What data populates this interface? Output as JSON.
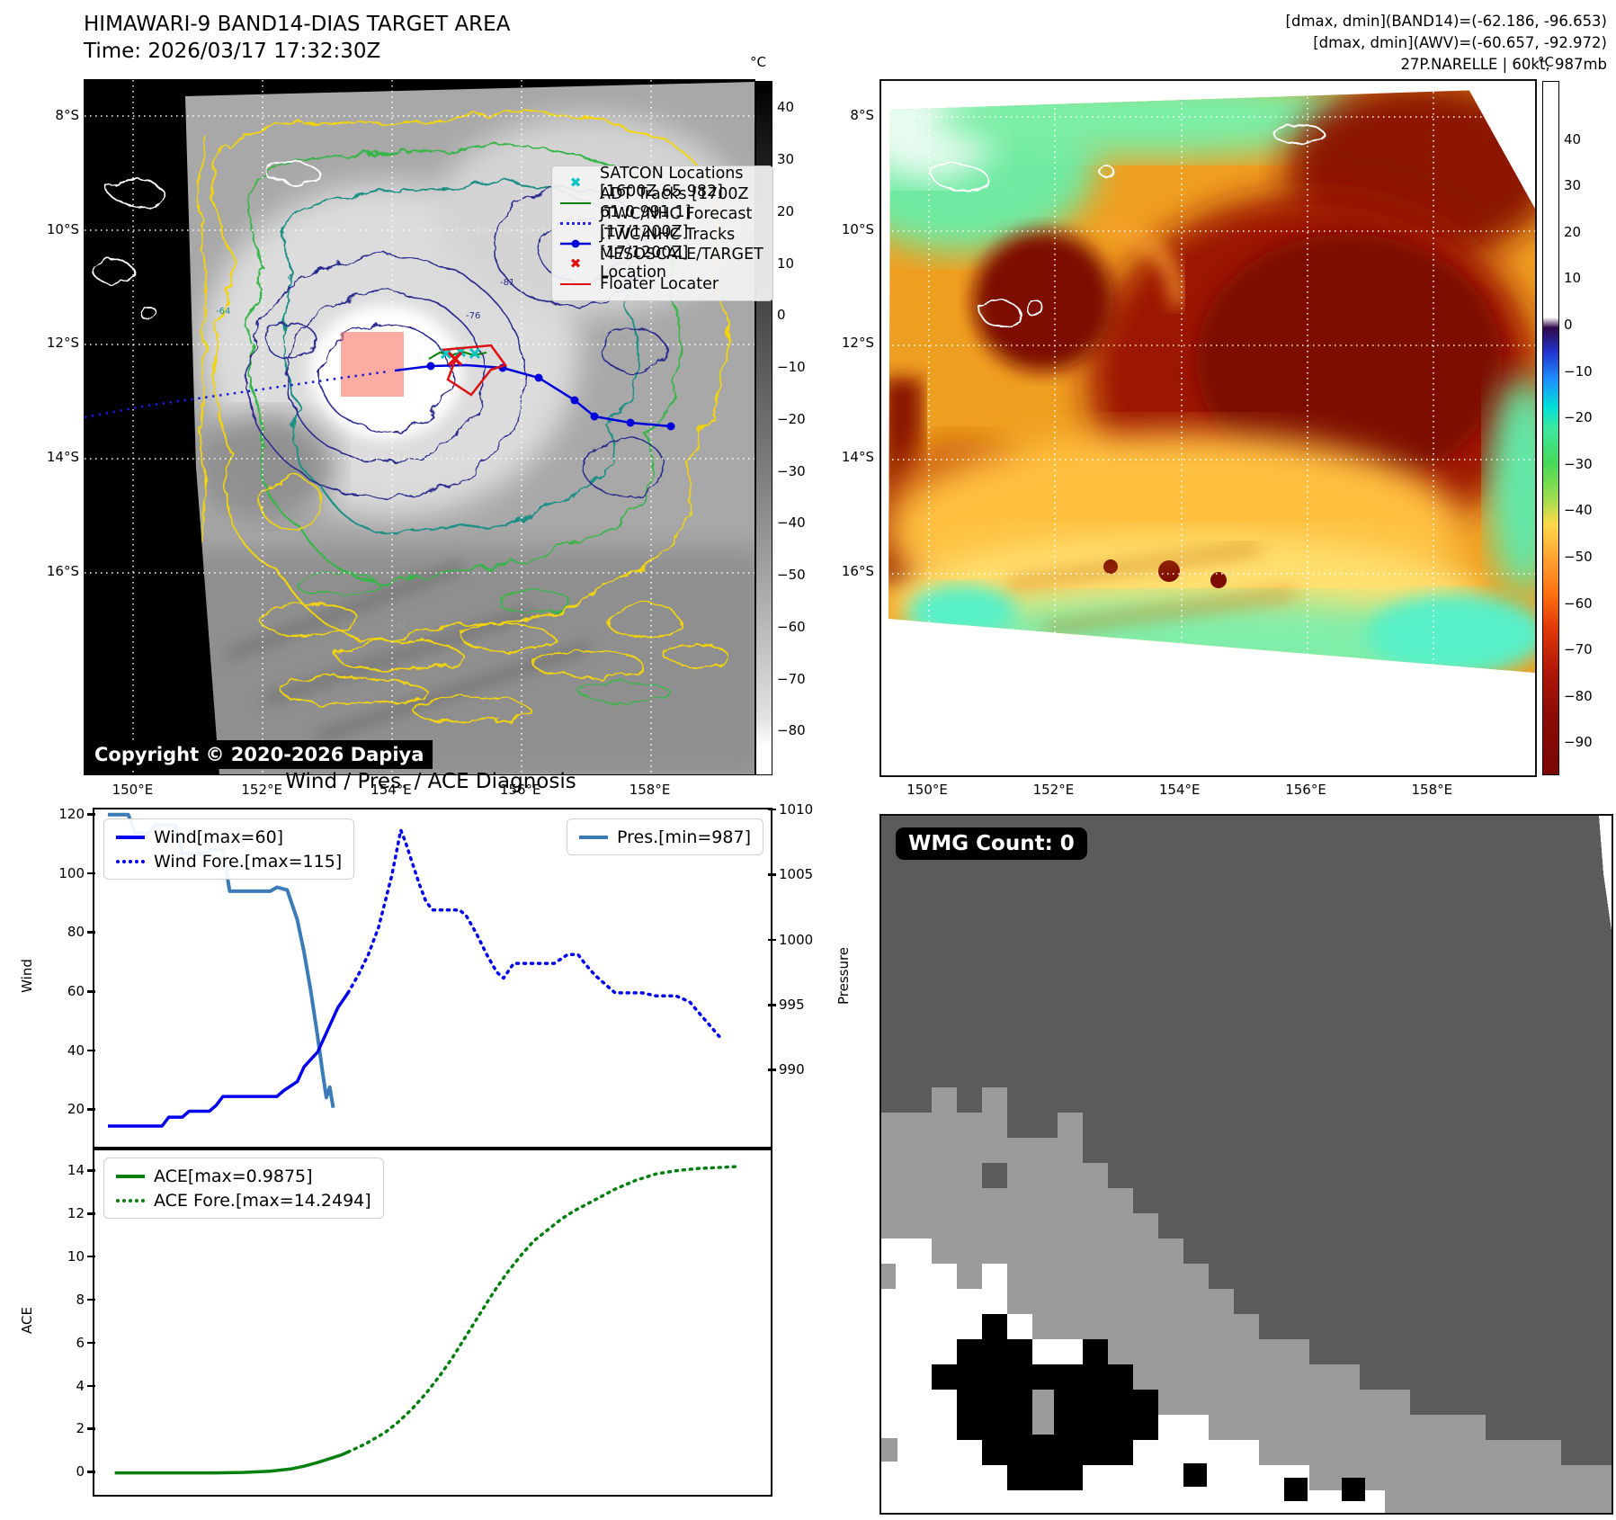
{
  "panel_tl": {
    "title_line1": "HIMAWARI-9 BAND14-DIAS TARGET AREA",
    "title_line2": "Time: 2026/03/17 17:32:30Z",
    "copyright": "Copyright © 2020-2026 Dapiya",
    "legend": [
      "SATCON Locations [1600Z 65 982]",
      "ADT Tracks [1700Z 61.0 991.1]",
      "JTWC/NHC Forecast [17/1200Z]",
      "JTWC/NHC Tracks [17/1200Z]",
      "MESOSCALE/TARGET Location",
      "Floater Locater"
    ],
    "colorbar": {
      "unit": "°C",
      "ticks": [
        "40",
        "30",
        "20",
        "10",
        "0",
        "−10",
        "−20",
        "−30",
        "−40",
        "−50",
        "−60",
        "−70",
        "−80"
      ]
    },
    "x_ticks": [
      "150°E",
      "152°E",
      "154°E",
      "156°E",
      "158°E"
    ],
    "y_ticks": [
      "8°S",
      "10°S",
      "12°S",
      "14°S",
      "16°S"
    ],
    "contour_labels": {
      "navy1": "-81",
      "navy2": "-76",
      "teal": "-64",
      "gray": "-37"
    }
  },
  "panel_tr": {
    "header_line1": "[dmax, dmin](BAND14)=(-62.186, -96.653)",
    "header_line2": "[dmax, dmin](AWV)=(-60.657, -92.972)",
    "header_line3": "27P.NARELLE | 60kt, 987mb",
    "colorbar": {
      "unit": "°C",
      "ticks": [
        "40",
        "30",
        "20",
        "10",
        "0",
        "−10",
        "−20",
        "−30",
        "−40",
        "−50",
        "−60",
        "−70",
        "−80",
        "−90"
      ]
    },
    "x_ticks": [
      "150°E",
      "152°E",
      "154°E",
      "156°E",
      "158°E"
    ],
    "y_ticks": [
      "8°S",
      "10°S",
      "12°S",
      "14°S",
      "16°S"
    ]
  },
  "wmg": {
    "count_label": "WMG Count: 0"
  },
  "colors": {
    "wind": "#0000ee",
    "pressure": "#3b7cb8",
    "ace": "#007f0e",
    "satcon": "#00c3c3",
    "jtwc_track": "#0000dd",
    "floater": "#dd1111",
    "adt": "#008000",
    "target_box": "#fa8072"
  },
  "chart_data": [
    {
      "type": "line",
      "title": "Wind / Pres. / ACE Diagnosis",
      "xlabel": "",
      "ylabel": "Wind",
      "y2label": "Pressure",
      "xlim": [
        0,
        100
      ],
      "ylim": [
        8,
        122
      ],
      "y2lim": [
        984,
        1010
      ],
      "y_ticks": [
        120,
        100,
        80,
        60,
        40,
        20
      ],
      "y2_ticks": [
        1010,
        1005,
        1000,
        995,
        990
      ],
      "grid": false,
      "legend_position": "upper-left / upper-right",
      "series": [
        {
          "name": "Wind[max=60]",
          "style": "solid",
          "color": "#0000ee",
          "axis": "left",
          "width": 3.5,
          "points": [
            [
              2,
              15
            ],
            [
              10,
              15
            ],
            [
              11,
              18
            ],
            [
              13,
              18
            ],
            [
              14,
              20
            ],
            [
              17,
              20
            ],
            [
              18,
              22
            ],
            [
              19,
              25
            ],
            [
              27,
              25
            ],
            [
              28,
              27
            ],
            [
              30,
              30
            ],
            [
              31,
              35
            ],
            [
              33,
              40
            ],
            [
              34,
              45
            ],
            [
              35,
              50
            ],
            [
              36,
              55
            ],
            [
              37.5,
              60
            ]
          ]
        },
        {
          "name": "Wind Fore.[max=115]",
          "style": "dotted",
          "color": "#0000ee",
          "axis": "left",
          "width": 3.5,
          "points": [
            [
              37.5,
              60
            ],
            [
              39,
              66
            ],
            [
              40.5,
              73
            ],
            [
              42,
              82
            ],
            [
              43,
              91
            ],
            [
              44,
              100
            ],
            [
              44.7,
              108
            ],
            [
              45.3,
              115
            ],
            [
              46,
              111
            ],
            [
              47,
              104
            ],
            [
              48,
              97
            ],
            [
              49,
              91
            ],
            [
              50,
              88
            ],
            [
              54,
              88
            ],
            [
              55,
              86
            ],
            [
              56.5,
              80
            ],
            [
              58,
              73
            ],
            [
              59.5,
              67
            ],
            [
              60.5,
              65
            ],
            [
              62,
              70
            ],
            [
              66,
              70
            ],
            [
              68,
              70
            ],
            [
              70,
              73
            ],
            [
              71.5,
              73
            ],
            [
              72.5,
              70
            ],
            [
              74,
              66
            ],
            [
              75.5,
              63
            ],
            [
              77,
              60
            ],
            [
              81,
              60
            ],
            [
              83,
              59
            ],
            [
              86,
              59
            ],
            [
              88,
              57
            ],
            [
              89.5,
              53
            ],
            [
              91,
              49
            ],
            [
              92.5,
              45
            ]
          ]
        },
        {
          "name": "Pres.[min=987]",
          "style": "solid",
          "color": "#3b7cb8",
          "axis": "right",
          "width": 4,
          "points": [
            [
              2,
              1009.6
            ],
            [
              5,
              1009.6
            ],
            [
              6,
              1008.2
            ],
            [
              8,
              1008.2
            ],
            [
              9,
              1008.8
            ],
            [
              12,
              1008.8
            ],
            [
              13,
              1006.6
            ],
            [
              16,
              1006.6
            ],
            [
              17,
              1006.9
            ],
            [
              19,
              1006.9
            ],
            [
              20,
              1003.7
            ],
            [
              26,
              1003.7
            ],
            [
              27,
              1004
            ],
            [
              28.5,
              1003.8
            ],
            [
              30,
              1001.5
            ],
            [
              31,
              999
            ],
            [
              32,
              996
            ],
            [
              33,
              992.5
            ],
            [
              33.8,
              989.5
            ],
            [
              34.3,
              987.8
            ],
            [
              34.8,
              988.6
            ],
            [
              35.3,
              987
            ]
          ]
        }
      ]
    },
    {
      "type": "line",
      "xlabel": "",
      "ylabel": "ACE",
      "xlim": [
        0,
        100
      ],
      "ylim": [
        -1,
        15
      ],
      "y_ticks": [
        14,
        12,
        10,
        8,
        6,
        4,
        2,
        0
      ],
      "grid": false,
      "legend_position": "upper-left",
      "series": [
        {
          "name": "ACE[max=0.9875]",
          "style": "solid",
          "color": "#007f0e",
          "axis": "left",
          "width": 3.5,
          "points": [
            [
              3,
              0.02
            ],
            [
              18,
              0.02
            ],
            [
              22,
              0.04
            ],
            [
              26,
              0.1
            ],
            [
              29,
              0.2
            ],
            [
              31,
              0.33
            ],
            [
              33,
              0.5
            ],
            [
              35,
              0.7
            ],
            [
              36.5,
              0.85
            ],
            [
              37.5,
              0.99
            ]
          ]
        },
        {
          "name": "ACE Fore.[max=14.2494]",
          "style": "dotted",
          "color": "#007f0e",
          "axis": "left",
          "width": 3.5,
          "points": [
            [
              37.5,
              0.99
            ],
            [
              40,
              1.35
            ],
            [
              43,
              1.9
            ],
            [
              45,
              2.4
            ],
            [
              47,
              3.0
            ],
            [
              49,
              3.7
            ],
            [
              51,
              4.5
            ],
            [
              53,
              5.4
            ],
            [
              55,
              6.4
            ],
            [
              57,
              7.4
            ],
            [
              59,
              8.4
            ],
            [
              61,
              9.3
            ],
            [
              63,
              10.1
            ],
            [
              65,
              10.8
            ],
            [
              67,
              11.3
            ],
            [
              69,
              11.8
            ],
            [
              71,
              12.2
            ],
            [
              74,
              12.7
            ],
            [
              77,
              13.2
            ],
            [
              80,
              13.6
            ],
            [
              83,
              13.9
            ],
            [
              86,
              14.05
            ],
            [
              89,
              14.15
            ],
            [
              92,
              14.2
            ],
            [
              95,
              14.25
            ]
          ]
        }
      ]
    }
  ]
}
